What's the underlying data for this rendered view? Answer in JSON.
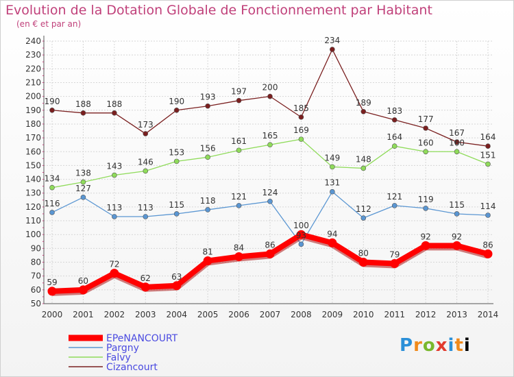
{
  "title": "Evolution de la Dotation Globale de Fonctionnement par Habitant",
  "subtitle": "(en € et par an)",
  "logo_text": [
    "P",
    "r",
    "o",
    "x",
    "i",
    "t",
    "i"
  ],
  "chart_data": {
    "type": "line",
    "title": "Evolution de la Dotation Globale de Fonctionnement par Habitant",
    "subtitle": "(en € et par an)",
    "xlabel": "",
    "ylabel": "",
    "ylim": [
      50,
      240
    ],
    "yticks": [
      50,
      60,
      70,
      80,
      90,
      100,
      110,
      120,
      130,
      140,
      150,
      160,
      170,
      180,
      190,
      200,
      210,
      220,
      230,
      240
    ],
    "grid": true,
    "legend_position": "bottom-left",
    "x": [
      "2000",
      "2001",
      "2002",
      "2003",
      "2004",
      "2005",
      "2006",
      "2007",
      "2008",
      "2009",
      "2010",
      "2011",
      "2012",
      "2013",
      "2014"
    ],
    "series": [
      {
        "name": "Cizancourt",
        "color": "#7a1f1f",
        "values": [
          190,
          188,
          188,
          173,
          190,
          193,
          197,
          200,
          185,
          234,
          189,
          183,
          177,
          167,
          164
        ]
      },
      {
        "name": "Falvy",
        "color": "#8fdb5a",
        "values": [
          134,
          138,
          143,
          146,
          153,
          156,
          161,
          165,
          169,
          149,
          148,
          164,
          160,
          160,
          151
        ]
      },
      {
        "name": "Pargny",
        "color": "#5a96d2",
        "values": [
          116,
          127,
          113,
          113,
          115,
          118,
          121,
          124,
          93,
          131,
          112,
          121,
          119,
          115,
          114
        ]
      },
      {
        "name": "EPeNANCOURT",
        "color": "#ff0000",
        "values": [
          59,
          60,
          72,
          62,
          63,
          81,
          84,
          86,
          100,
          94,
          80,
          79,
          92,
          92,
          86
        ]
      }
    ],
    "legend": [
      "EPeNANCOURT",
      "Pargny",
      "Falvy",
      "Cizancourt"
    ],
    "legend_text_color": "#4a4ae0"
  }
}
